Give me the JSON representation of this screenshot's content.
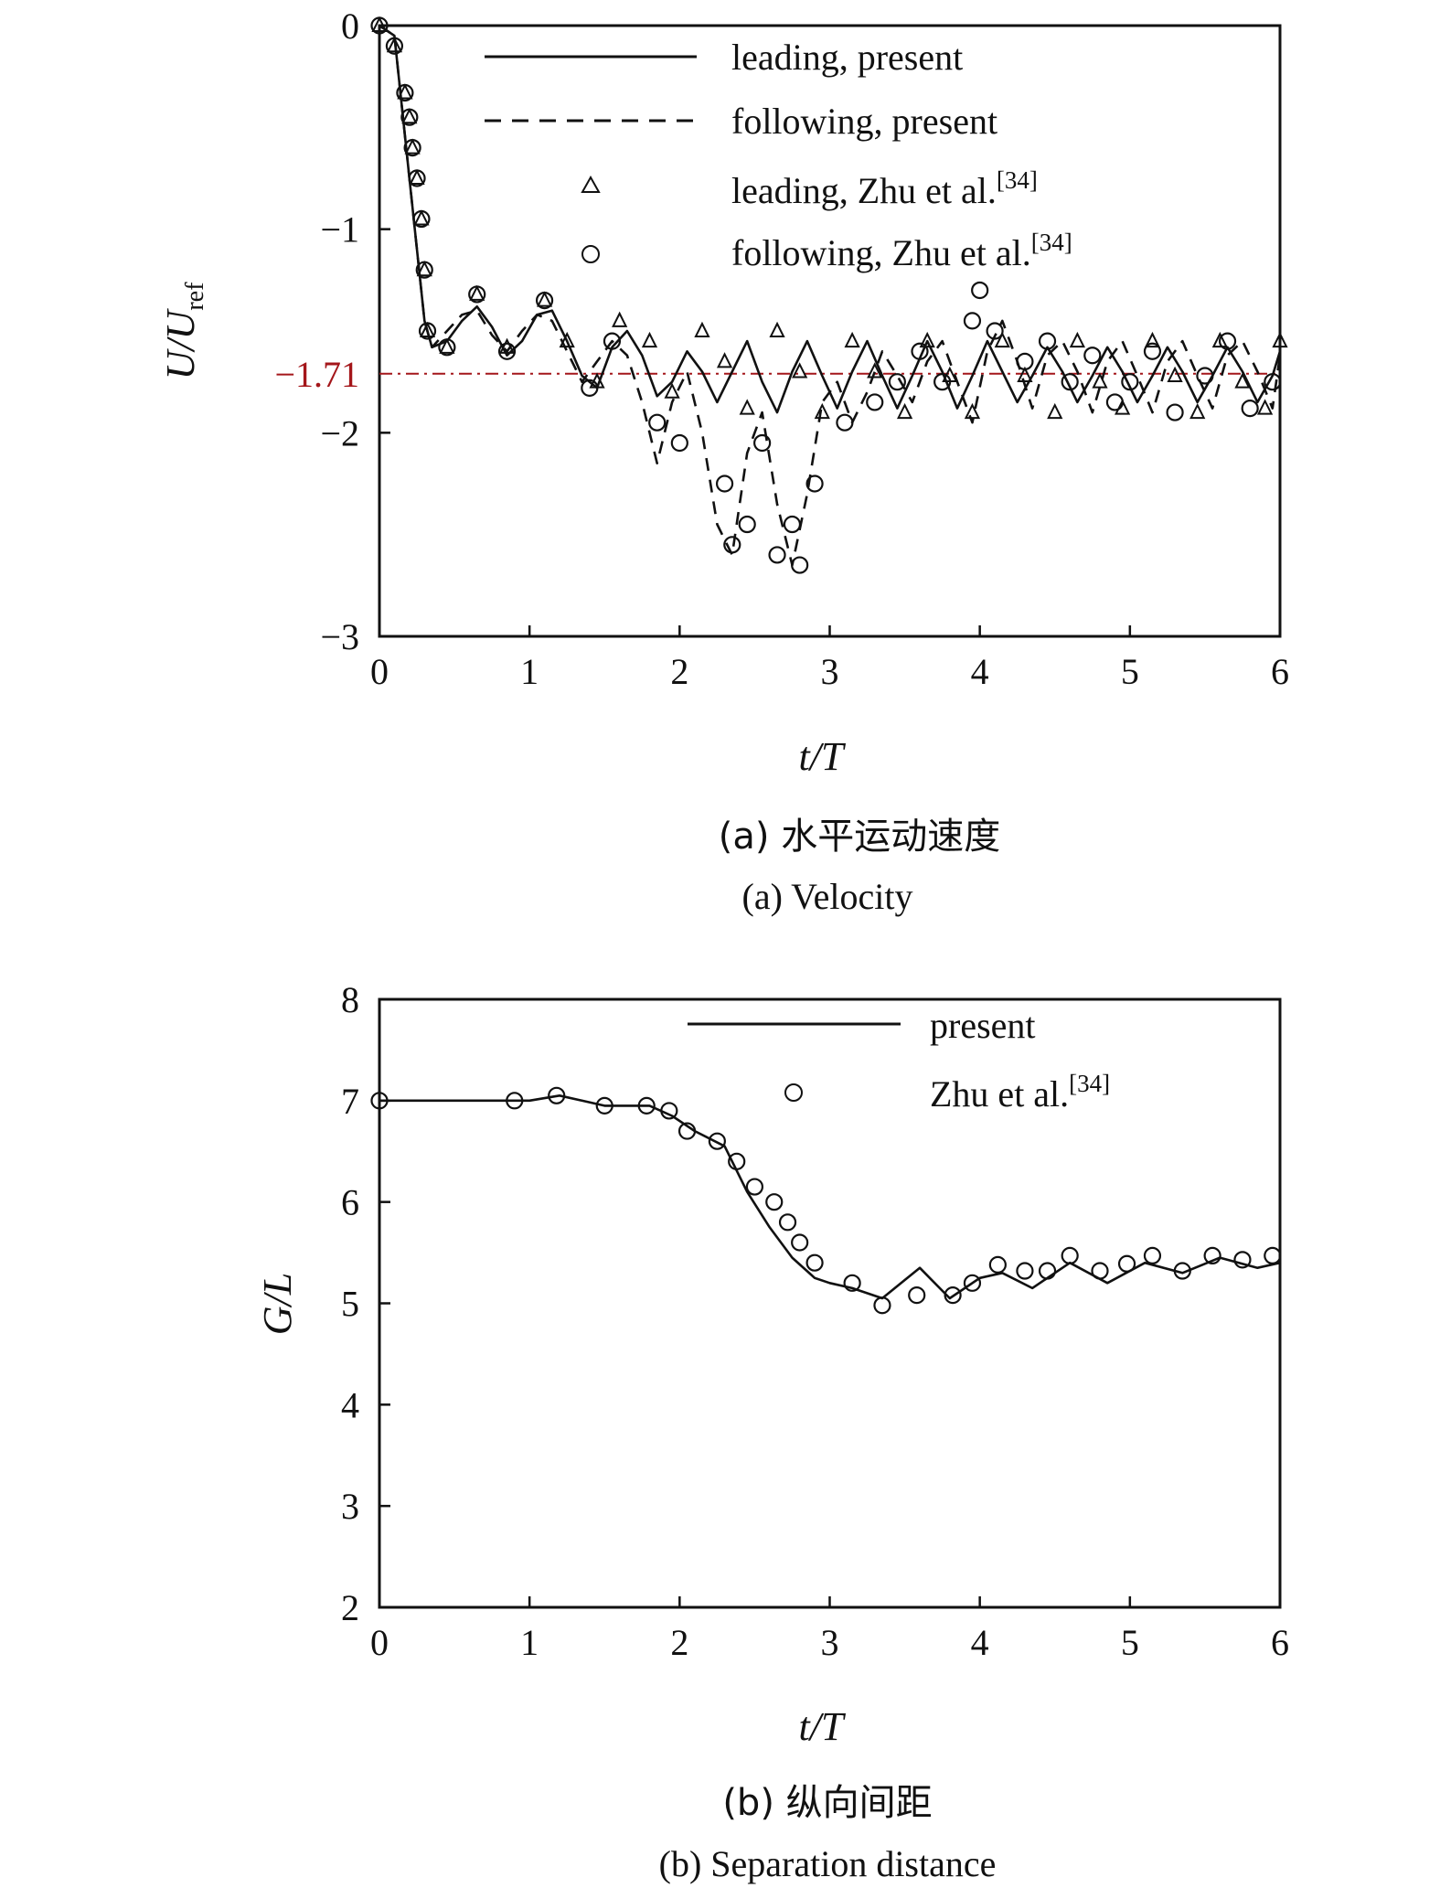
{
  "chart_data": [
    {
      "type": "line",
      "title": "",
      "xlabel": "t/T",
      "ylabel": "U/U",
      "ylabel_sub": "ref",
      "xlim": [
        0,
        6
      ],
      "ylim": [
        -3,
        0
      ],
      "xticks": [
        "0",
        "1",
        "2",
        "3",
        "4",
        "5",
        "6"
      ],
      "yticks": [
        "0",
        "−1",
        "−2",
        "−3"
      ],
      "reference_line": {
        "y": -1.71,
        "label": "−1.71",
        "color": "#a4161a",
        "style": "dash-dot"
      },
      "caption_cn": "(a) 水平运动速度",
      "caption_en": "(a) Velocity",
      "legend_position": "top-right",
      "series": [
        {
          "name": "leading, present",
          "style": "solid",
          "x": [
            0,
            0.1,
            0.2,
            0.3,
            0.35,
            0.45,
            0.55,
            0.65,
            0.75,
            0.85,
            0.95,
            1.05,
            1.15,
            1.25,
            1.35,
            1.45,
            1.55,
            1.65,
            1.75,
            1.85,
            1.95,
            2.05,
            2.15,
            2.25,
            2.35,
            2.45,
            2.55,
            2.65,
            2.75,
            2.85,
            2.95,
            3.05,
            3.15,
            3.25,
            3.35,
            3.45,
            3.55,
            3.65,
            3.75,
            3.85,
            3.95,
            4.05,
            4.15,
            4.25,
            4.35,
            4.45,
            4.55,
            4.65,
            4.75,
            4.85,
            4.95,
            5.05,
            5.15,
            5.25,
            5.35,
            5.45,
            5.55,
            5.65,
            5.75,
            5.85,
            5.95,
            6.0
          ],
          "y": [
            0,
            -0.05,
            -0.75,
            -1.45,
            -1.58,
            -1.55,
            -1.45,
            -1.38,
            -1.48,
            -1.62,
            -1.55,
            -1.42,
            -1.4,
            -1.55,
            -1.72,
            -1.78,
            -1.58,
            -1.5,
            -1.62,
            -1.82,
            -1.75,
            -1.6,
            -1.7,
            -1.85,
            -1.7,
            -1.55,
            -1.75,
            -1.9,
            -1.7,
            -1.55,
            -1.72,
            -1.88,
            -1.7,
            -1.55,
            -1.72,
            -1.88,
            -1.72,
            -1.55,
            -1.7,
            -1.88,
            -1.72,
            -1.55,
            -1.7,
            -1.85,
            -1.72,
            -1.58,
            -1.7,
            -1.85,
            -1.72,
            -1.58,
            -1.7,
            -1.85,
            -1.72,
            -1.58,
            -1.7,
            -1.85,
            -1.72,
            -1.58,
            -1.7,
            -1.85,
            -1.72,
            -1.6
          ]
        },
        {
          "name": "following, present",
          "style": "dashed",
          "x": [
            0,
            0.1,
            0.2,
            0.3,
            0.35,
            0.45,
            0.55,
            0.65,
            0.75,
            0.85,
            0.95,
            1.05,
            1.15,
            1.25,
            1.35,
            1.45,
            1.55,
            1.65,
            1.75,
            1.85,
            1.95,
            2.05,
            2.15,
            2.25,
            2.35,
            2.45,
            2.55,
            2.65,
            2.75,
            2.85,
            2.95,
            3.05,
            3.15,
            3.25,
            3.35,
            3.45,
            3.55,
            3.65,
            3.75,
            3.85,
            3.95,
            4.05,
            4.15,
            4.25,
            4.35,
            4.45,
            4.55,
            4.65,
            4.75,
            4.85,
            4.95,
            5.05,
            5.15,
            5.25,
            5.35,
            5.45,
            5.55,
            5.65,
            5.75,
            5.85,
            5.95,
            6.0
          ],
          "y": [
            0,
            -0.05,
            -0.75,
            -1.45,
            -1.58,
            -1.5,
            -1.42,
            -1.4,
            -1.52,
            -1.6,
            -1.5,
            -1.42,
            -1.45,
            -1.6,
            -1.75,
            -1.65,
            -1.55,
            -1.62,
            -1.85,
            -2.15,
            -1.85,
            -1.7,
            -2.0,
            -2.45,
            -2.6,
            -2.1,
            -1.9,
            -2.35,
            -2.65,
            -2.3,
            -1.85,
            -1.75,
            -1.95,
            -1.8,
            -1.6,
            -1.72,
            -1.85,
            -1.65,
            -1.55,
            -1.75,
            -1.95,
            -1.6,
            -1.45,
            -1.65,
            -1.88,
            -1.62,
            -1.55,
            -1.7,
            -1.9,
            -1.65,
            -1.55,
            -1.72,
            -1.9,
            -1.65,
            -1.55,
            -1.72,
            -1.88,
            -1.62,
            -1.55,
            -1.7,
            -1.88,
            -1.62
          ]
        },
        {
          "name": "leading, Zhu et al.",
          "name_sup": "[34]",
          "style": "triangle-markers",
          "x": [
            0,
            0.1,
            0.17,
            0.2,
            0.22,
            0.25,
            0.28,
            0.3,
            0.32,
            0.45,
            0.65,
            0.85,
            1.1,
            1.25,
            1.45,
            1.6,
            1.8,
            1.95,
            2.15,
            2.3,
            2.45,
            2.65,
            2.8,
            2.95,
            3.15,
            3.3,
            3.5,
            3.65,
            3.8,
            3.95,
            4.15,
            4.3,
            4.5,
            4.65,
            4.8,
            4.95,
            5.15,
            5.3,
            5.45,
            5.6,
            5.75,
            5.9,
            6.0
          ],
          "y": [
            0,
            -0.1,
            -0.33,
            -0.45,
            -0.6,
            -0.75,
            -0.95,
            -1.2,
            -1.5,
            -1.58,
            -1.32,
            -1.58,
            -1.35,
            -1.55,
            -1.75,
            -1.45,
            -1.55,
            -1.8,
            -1.5,
            -1.65,
            -1.88,
            -1.5,
            -1.7,
            -1.9,
            -1.55,
            -1.7,
            -1.9,
            -1.55,
            -1.72,
            -1.9,
            -1.55,
            -1.72,
            -1.9,
            -1.55,
            -1.75,
            -1.88,
            -1.55,
            -1.72,
            -1.9,
            -1.55,
            -1.75,
            -1.88,
            -1.55
          ]
        },
        {
          "name": "following, Zhu et al.",
          "name_sup": "[34]",
          "style": "circle-markers",
          "x": [
            0,
            0.1,
            0.17,
            0.2,
            0.22,
            0.25,
            0.28,
            0.3,
            0.32,
            0.45,
            0.65,
            0.85,
            1.1,
            1.4,
            1.55,
            1.85,
            2.0,
            2.3,
            2.35,
            2.45,
            2.55,
            2.65,
            2.75,
            2.8,
            2.9,
            3.1,
            3.3,
            3.45,
            3.6,
            3.75,
            3.95,
            4.0,
            4.1,
            4.3,
            4.45,
            4.6,
            4.75,
            4.9,
            5.0,
            5.15,
            5.3,
            5.5,
            5.65,
            5.8,
            5.95
          ],
          "y": [
            0,
            -0.1,
            -0.33,
            -0.45,
            -0.6,
            -0.75,
            -0.95,
            -1.2,
            -1.5,
            -1.58,
            -1.32,
            -1.6,
            -1.35,
            -1.78,
            -1.55,
            -1.95,
            -2.05,
            -2.25,
            -2.55,
            -2.45,
            -2.05,
            -2.6,
            -2.45,
            -2.65,
            -2.25,
            -1.95,
            -1.85,
            -1.75,
            -1.6,
            -1.75,
            -1.45,
            -1.3,
            -1.5,
            -1.65,
            -1.55,
            -1.75,
            -1.62,
            -1.85,
            -1.75,
            -1.6,
            -1.9,
            -1.72,
            -1.55,
            -1.88,
            -1.75
          ]
        }
      ]
    },
    {
      "type": "line",
      "title": "",
      "xlabel": "t/T",
      "ylabel": "G/L",
      "xlim": [
        0,
        6
      ],
      "ylim": [
        2,
        8
      ],
      "xticks": [
        "0",
        "1",
        "2",
        "3",
        "4",
        "5",
        "6"
      ],
      "yticks": [
        "2",
        "3",
        "4",
        "5",
        "6",
        "7",
        "8"
      ],
      "caption_cn": "(b) 纵向间距",
      "caption_en": "(b) Separation distance",
      "legend_position": "top-right",
      "series": [
        {
          "name": "present",
          "style": "solid",
          "x": [
            0,
            0.5,
            1.0,
            1.2,
            1.5,
            1.8,
            1.95,
            2.1,
            2.3,
            2.45,
            2.6,
            2.75,
            2.9,
            3.0,
            3.15,
            3.35,
            3.6,
            3.8,
            4.0,
            4.15,
            4.35,
            4.6,
            4.85,
            5.1,
            5.35,
            5.6,
            5.85,
            6.0
          ],
          "y": [
            7.0,
            7.0,
            7.0,
            7.05,
            6.95,
            6.95,
            6.85,
            6.7,
            6.55,
            6.1,
            5.75,
            5.45,
            5.25,
            5.2,
            5.15,
            5.05,
            5.35,
            5.05,
            5.25,
            5.3,
            5.15,
            5.4,
            5.2,
            5.4,
            5.3,
            5.45,
            5.35,
            5.4
          ]
        },
        {
          "name": "Zhu et al.",
          "name_sup": "[34]",
          "style": "circle-markers",
          "x": [
            0,
            0.9,
            1.18,
            1.5,
            1.78,
            1.93,
            2.05,
            2.25,
            2.38,
            2.5,
            2.63,
            2.72,
            2.8,
            2.9,
            3.15,
            3.35,
            3.58,
            3.82,
            3.95,
            4.12,
            4.3,
            4.45,
            4.6,
            4.8,
            4.98,
            5.15,
            5.35,
            5.55,
            5.75,
            5.95
          ],
          "y": [
            7.0,
            7.0,
            7.05,
            6.95,
            6.95,
            6.9,
            6.7,
            6.6,
            6.4,
            6.15,
            6.0,
            5.8,
            5.6,
            5.4,
            5.2,
            4.98,
            5.08,
            5.08,
            5.2,
            5.38,
            5.32,
            5.32,
            5.47,
            5.32,
            5.39,
            5.47,
            5.32,
            5.47,
            5.43,
            5.47
          ]
        }
      ]
    }
  ]
}
